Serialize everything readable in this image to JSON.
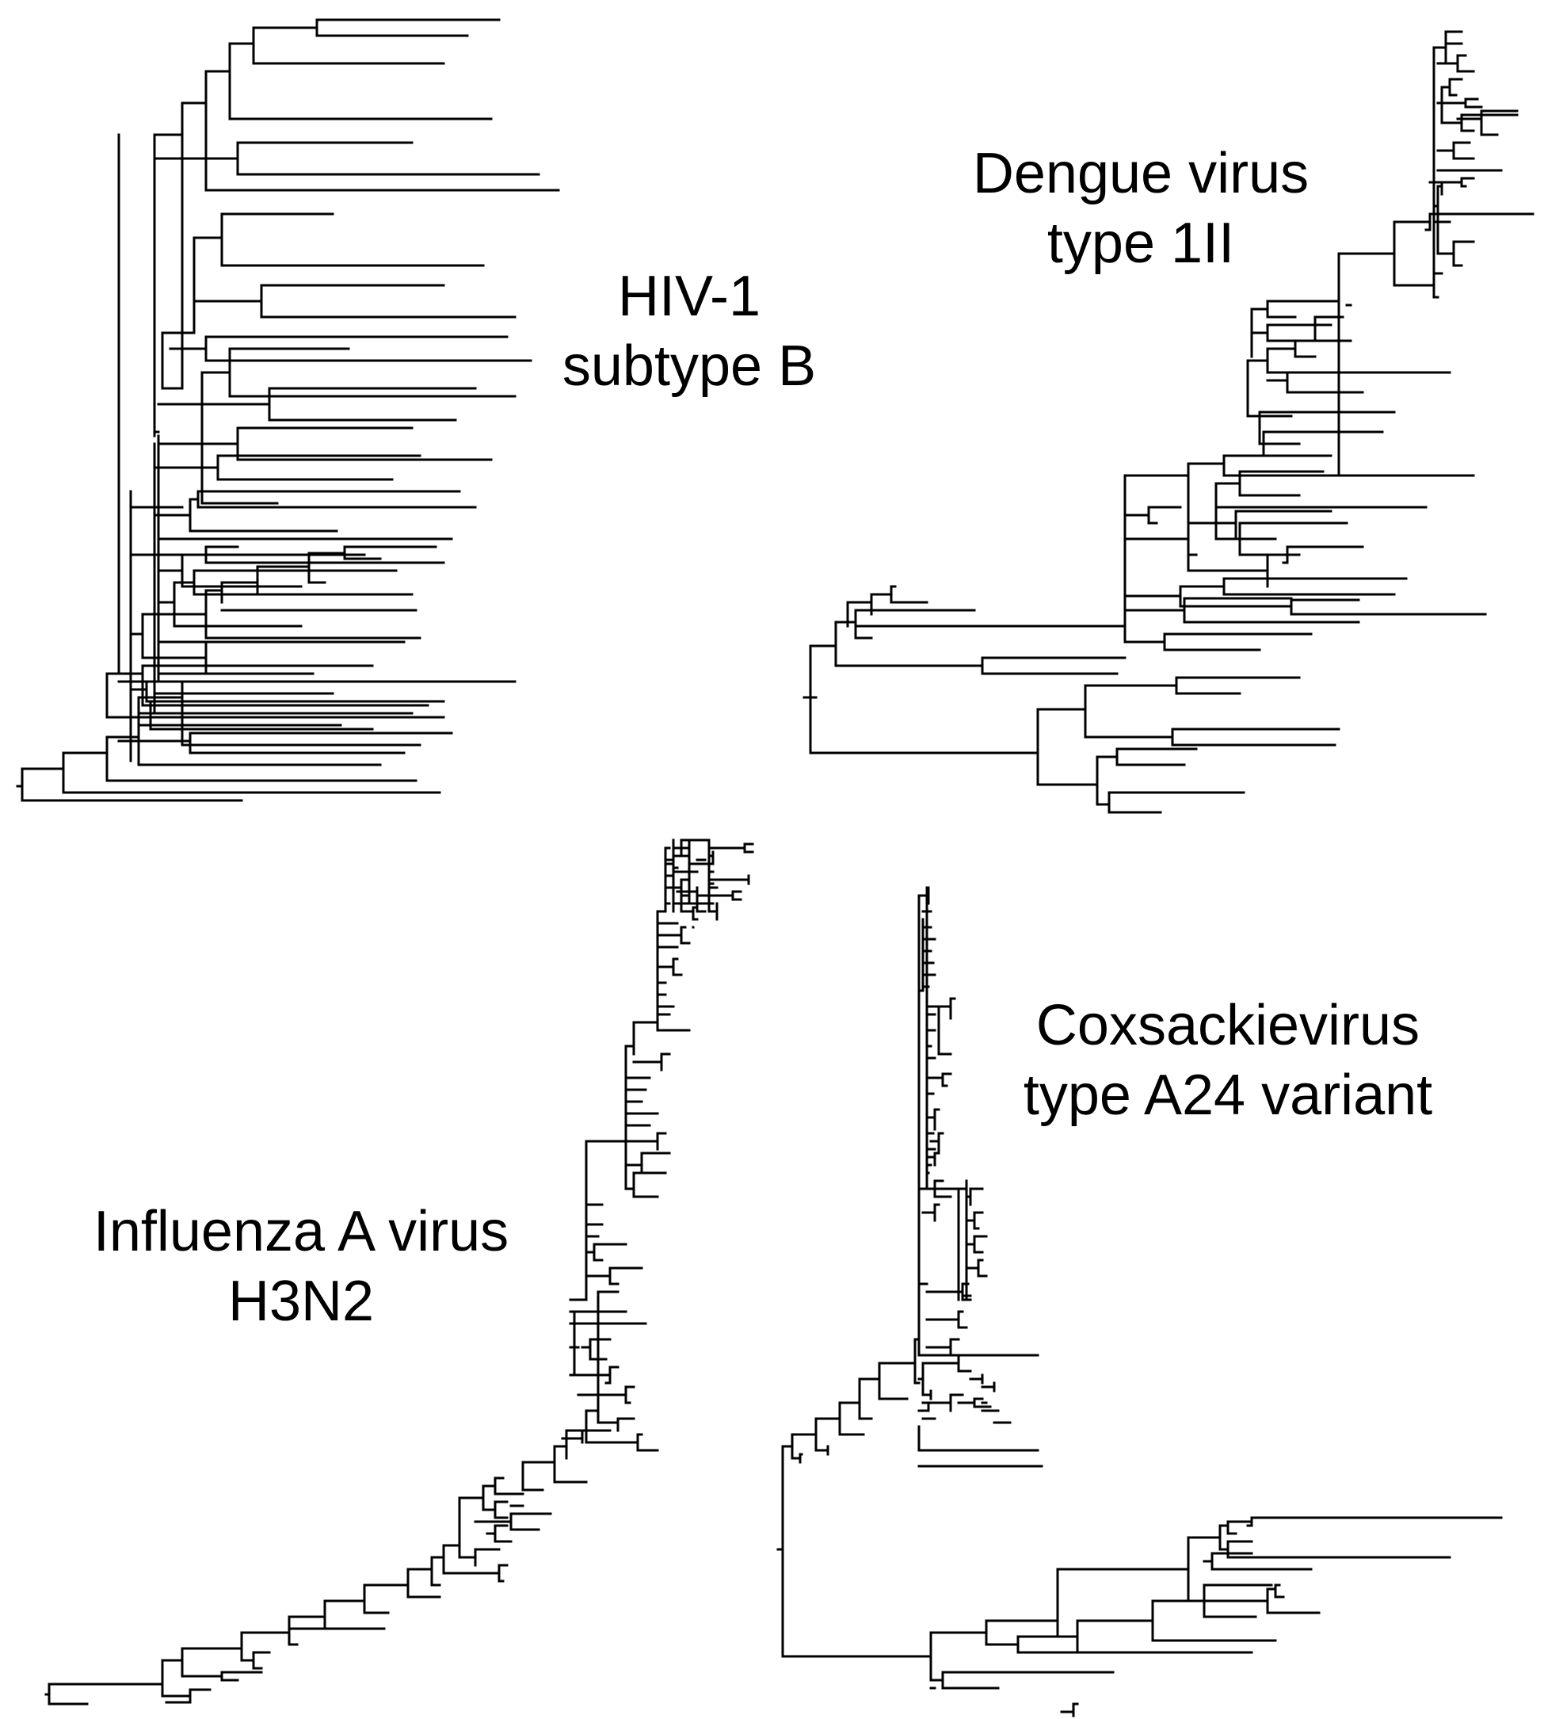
{
  "panels": {
    "hiv": {
      "line1": "HIV-1",
      "line2": "subtype B"
    },
    "dengue": {
      "line1": "Dengue virus",
      "line2": "type 1II"
    },
    "influenza": {
      "line1": "Influenza A virus",
      "line2": "H3N2"
    },
    "coxsackie": {
      "line1": "Coxsackievirus",
      "line2": "type A24 variant"
    }
  },
  "style": {
    "line_color": "#000000",
    "background": "#ffffff"
  }
}
